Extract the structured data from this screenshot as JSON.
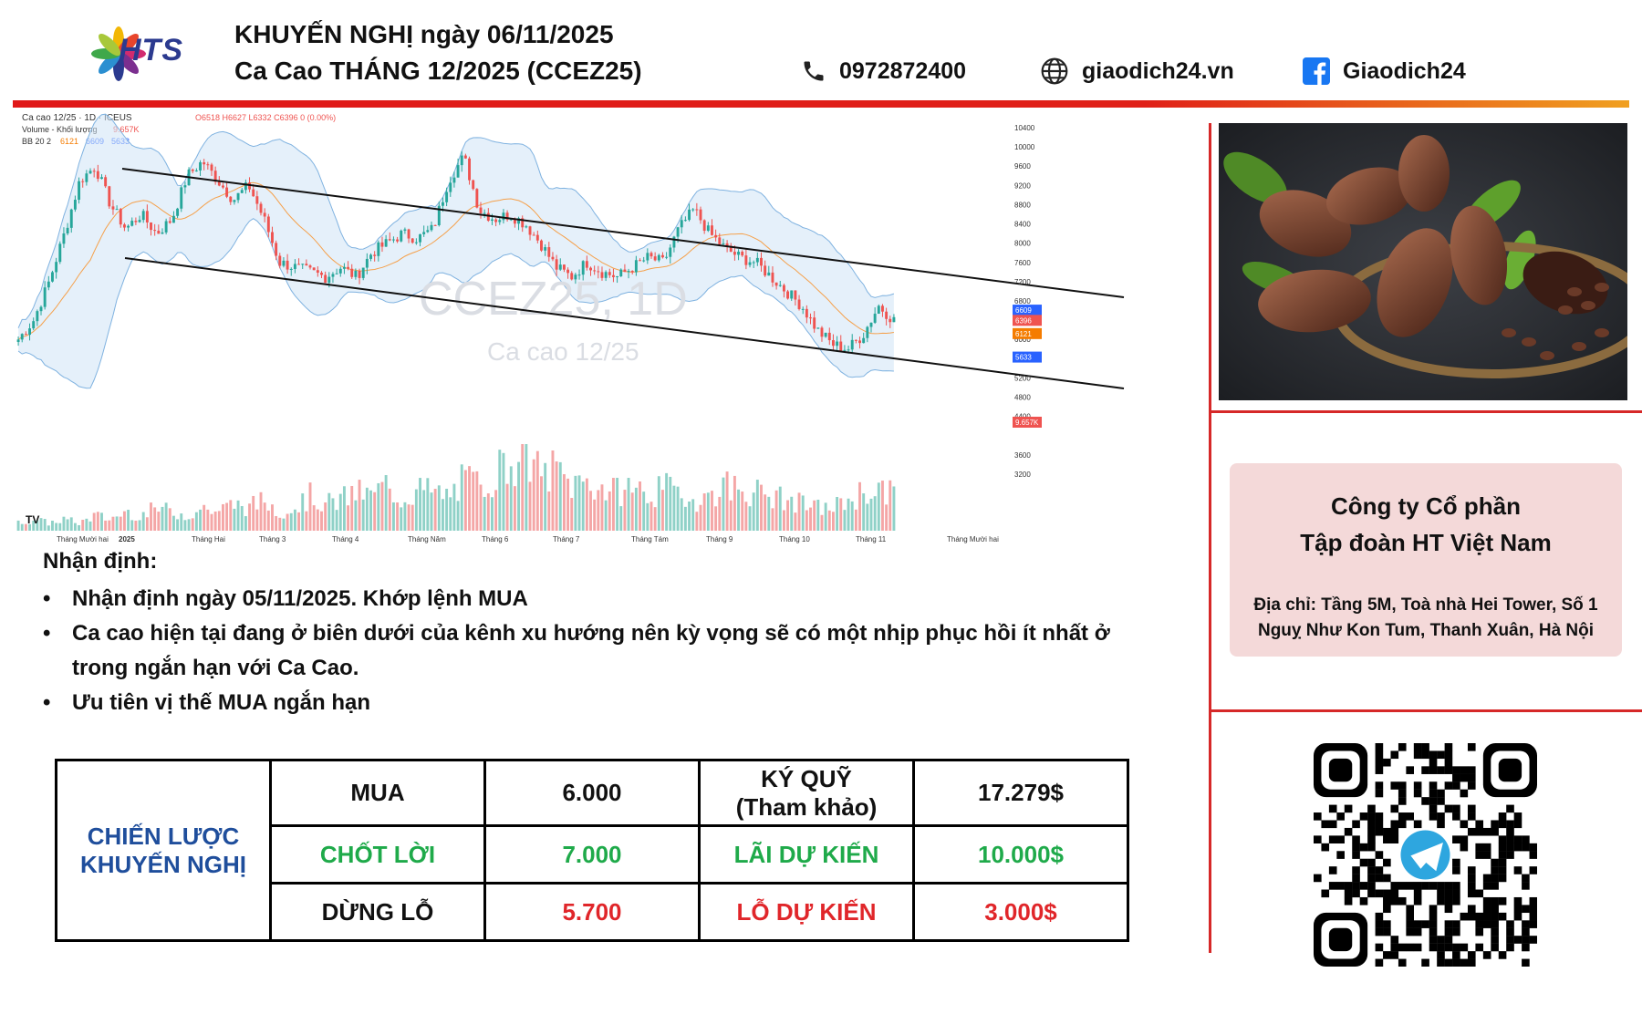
{
  "header": {
    "logo_text": "HTS",
    "title_line1": "KHUYẾN NGHỊ ngày 06/11/2025",
    "title_line2": "Ca Cao THÁNG 12/2025 (CCEZ25)",
    "phone": "0972872400",
    "website": "giaodich24.vn",
    "facebook": "Giaodich24",
    "icons": [
      "phone-icon",
      "globe-icon",
      "facebook-icon"
    ],
    "accent_red": "#e01818"
  },
  "chart_data": {
    "type": "candlestick",
    "symbol_line": "Ca cao 12/25 · 1D · ICEUS",
    "ohlc_line": "O6518 H6627 L6332 C6396 0 (0.00%)",
    "volume_line": "Volume - Khối lượng",
    "volume_value": "9.657K",
    "bb_line": "BB 20 2",
    "bb_values": [
      "6121",
      "6609",
      "5633"
    ],
    "watermark1": "CCEZ25, 1D",
    "watermark2": "Ca cao 12/25",
    "price_ticks": [
      "10400",
      "10000",
      "9600",
      "9200",
      "8800",
      "8400",
      "8000",
      "7600",
      "7200",
      "6800",
      "6400",
      "6000",
      "5200",
      "4800",
      "4400",
      "3600",
      "3200"
    ],
    "price_labels": [
      {
        "text": "6609",
        "color": "#2962ff"
      },
      {
        "text": "6396",
        "color": "#ef5350"
      },
      {
        "text": "6121",
        "color": "#f57c00"
      },
      {
        "text": "5633",
        "color": "#2962ff"
      },
      {
        "text": "9.657K",
        "color": "#ef5350"
      }
    ],
    "x_ticks": [
      "Tháng Mười hai",
      "2025",
      "Tháng Hai",
      "Tháng 3",
      "Tháng 4",
      "Tháng Năm",
      "Tháng 6",
      "Tháng 7",
      "Tháng Tám",
      "Tháng 9",
      "Tháng 10",
      "Tháng 11",
      "Tháng Mười hai"
    ],
    "ylim": [
      3200,
      10400
    ],
    "close_path": [
      6000,
      6400,
      7200,
      8200,
      9300,
      9600,
      8800,
      8300,
      8600,
      8200,
      8500,
      9400,
      9700,
      9300,
      8900,
      9200,
      8500,
      7600,
      7500,
      7400,
      7300,
      7500,
      7300,
      7800,
      8000,
      8200,
      8100,
      8300,
      9300,
      9800,
      8700,
      8500,
      8600,
      8400,
      8000,
      7500,
      7300,
      7600,
      7400,
      7300,
      7500,
      7700,
      7600,
      8300,
      8700,
      8200,
      7900,
      7700,
      7600,
      7300,
      7000,
      6700,
      6200,
      5900,
      5800,
      6100,
      6700,
      6400
    ],
    "volume_path": [
      2,
      3,
      2,
      3,
      2,
      4,
      3,
      5,
      4,
      6,
      5,
      4,
      6,
      5,
      7,
      6,
      8,
      5,
      6,
      9,
      7,
      8,
      10,
      9,
      12,
      8,
      11,
      10,
      9,
      13,
      12,
      15,
      18,
      22,
      14,
      16,
      12,
      13,
      11,
      10,
      12,
      9,
      11,
      10,
      8,
      9,
      12,
      11,
      10,
      9,
      8,
      7,
      6,
      6,
      8,
      10,
      11,
      9
    ],
    "grid": false,
    "legend": "top-left"
  },
  "analysis": {
    "title": "Nhận định:",
    "bullets": [
      "Nhận định ngày 05/11/2025. Khớp lệnh MUA",
      "Ca cao hiện tại đang ở biên dưới của kênh xu hướng nên kỳ vọng sẽ có một nhịp phục hồi ít nhất ở trong ngắn hạn với Ca Cao.",
      "Ưu tiên vị thế MUA ngắn hạn"
    ]
  },
  "strategy": {
    "label_line1": "CHIẾN LƯỢC",
    "label_line2": "KHUYẾN NGHỊ",
    "buy_label": "MUA",
    "buy_price": "6.000",
    "margin_label_line1": "KÝ QUỸ",
    "margin_label_line2": "(Tham khảo)",
    "margin_value": "17.279$",
    "tp_label": "CHỐT LỜI",
    "tp_price": "7.000",
    "profit_label": "LÃI DỰ KIẾN",
    "profit_value": "10.000$",
    "sl_label": "DỪNG LỖ",
    "sl_price": "5.700",
    "loss_label": "LỖ DỰ KIẾN",
    "loss_value": "3.000$",
    "colors": {
      "blue": "#1f4e9c",
      "green": "#1faa4a",
      "red": "#e0262a"
    }
  },
  "company": {
    "line1": "Công ty Cổ phần",
    "line2": "Tập đoàn HT Việt Nam",
    "address": "Địa chỉ: Tầng 5M, Toà nhà Hei Tower, Số 1 Nguỵ Như Kon Tum, Thanh Xuân, Hà Nội"
  },
  "qr": {
    "icon": "telegram-icon"
  }
}
